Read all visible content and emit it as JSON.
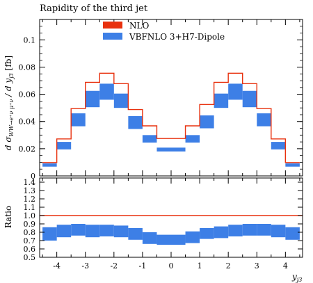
{
  "title": "Rapidity of the third jet",
  "colors": {
    "nlo": "#e8310e",
    "band": "#3d7fe6"
  },
  "chart_data": {
    "type": "bar",
    "title": "Rapidity of the third jet",
    "xlabel": "y_j3",
    "ylabel": "dσ_{WW→e⁺ν μ⁺ν}/dy_j3 [fb]",
    "xlim": [
      -4.6,
      4.6
    ],
    "ylim": [
      0,
      0.115
    ],
    "x_ticks": [
      "-4",
      "-3",
      "-2",
      "-1",
      "0",
      "1",
      "2",
      "3",
      "4"
    ],
    "y_ticks": [
      "0",
      "0.02",
      "0.04",
      "0.06",
      "0.08",
      "0.1"
    ],
    "bin_edges": [
      -4.5,
      -4.0,
      -3.5,
      -3.0,
      -2.5,
      -2.0,
      -1.5,
      -1.0,
      -0.5,
      0.5,
      1.0,
      1.5,
      2.0,
      2.5,
      3.0,
      3.5,
      4.0,
      4.5
    ],
    "legend": [
      "NLO",
      "VBFNLO 3+H7-Dipole"
    ],
    "series": [
      {
        "name": "NLO",
        "style": "step",
        "values": [
          0.0098,
          0.0272,
          0.0495,
          0.0688,
          0.0755,
          0.0678,
          0.0488,
          0.0368,
          0.0275,
          0.0368,
          0.0525,
          0.0688,
          0.0755,
          0.0678,
          0.0495,
          0.0272,
          0.0098
        ]
      },
      {
        "name": "VBFNLO 3+H7-Dipole",
        "style": "band",
        "low": [
          0.0068,
          0.0195,
          0.0365,
          0.0505,
          0.056,
          0.05,
          0.0345,
          0.0245,
          0.018,
          0.0245,
          0.035,
          0.05,
          0.056,
          0.0505,
          0.0365,
          0.0195,
          0.0068
        ],
        "high": [
          0.0092,
          0.025,
          0.046,
          0.0625,
          0.0678,
          0.0605,
          0.044,
          0.03,
          0.0208,
          0.03,
          0.0445,
          0.0605,
          0.0678,
          0.0625,
          0.046,
          0.025,
          0.0092
        ]
      }
    ],
    "ratio_panel": {
      "ylabel": "Ratio",
      "ylim": [
        0.5,
        1.45
      ],
      "y_ticks": [
        "0.5",
        "0.6",
        "0.7",
        "0.8",
        "0.9",
        "1.0",
        "1.1",
        "1.2",
        "1.3",
        "1.4"
      ],
      "reference": 1.0,
      "low": [
        0.7,
        0.74,
        0.76,
        0.74,
        0.75,
        0.74,
        0.71,
        0.66,
        0.65,
        0.67,
        0.72,
        0.73,
        0.75,
        0.76,
        0.76,
        0.74,
        0.71
      ],
      "high": [
        0.86,
        0.89,
        0.9,
        0.89,
        0.89,
        0.88,
        0.85,
        0.8,
        0.77,
        0.81,
        0.85,
        0.87,
        0.89,
        0.9,
        0.9,
        0.89,
        0.86
      ]
    }
  }
}
